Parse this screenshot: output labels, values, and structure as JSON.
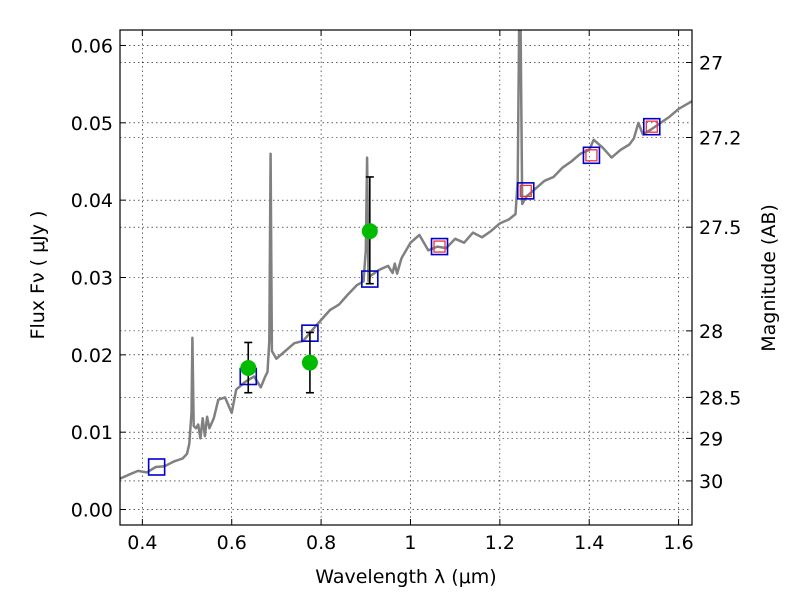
{
  "chart_data": {
    "type": "scatter",
    "xlabel": "Wavelength  λ (μm)",
    "ylabel": "Flux  Fν  ( μJy )",
    "y2label": "Magnitude (AB)",
    "xlim": [
      0.35,
      1.63
    ],
    "ylim": [
      -0.002,
      0.062
    ],
    "x_ticks": [
      "0.4",
      "0.6",
      "0.8",
      "1",
      "1.2",
      "1.4",
      "1.6"
    ],
    "y_ticks": [
      "0.00",
      "0.01",
      "0.02",
      "0.03",
      "0.04",
      "0.05",
      "0.06"
    ],
    "mag_ticks": [
      {
        "label": "27",
        "flux": 0.0578
      },
      {
        "label": "27.2",
        "flux": 0.0481
      },
      {
        "label": "27.5",
        "flux": 0.0365
      },
      {
        "label": "28",
        "flux": 0.0231
      },
      {
        "label": "28.5",
        "flux": 0.0145
      },
      {
        "label": "29",
        "flux": 0.0092
      },
      {
        "label": "30",
        "flux": 0.0037
      }
    ],
    "grid": true,
    "series": [
      {
        "kind": "line",
        "color": "#808080",
        "points": [
          [
            0.35,
            0.004
          ],
          [
            0.37,
            0.0045
          ],
          [
            0.39,
            0.005
          ],
          [
            0.41,
            0.0048
          ],
          [
            0.43,
            0.0055
          ],
          [
            0.45,
            0.0056
          ],
          [
            0.47,
            0.0062
          ],
          [
            0.49,
            0.0066
          ],
          [
            0.5,
            0.0072
          ],
          [
            0.505,
            0.0085
          ],
          [
            0.51,
            0.0125
          ],
          [
            0.512,
            0.0222
          ],
          [
            0.515,
            0.0108
          ],
          [
            0.52,
            0.0105
          ],
          [
            0.525,
            0.011
          ],
          [
            0.53,
            0.0092
          ],
          [
            0.535,
            0.0118
          ],
          [
            0.54,
            0.0095
          ],
          [
            0.545,
            0.012
          ],
          [
            0.55,
            0.0105
          ],
          [
            0.56,
            0.0118
          ],
          [
            0.57,
            0.0142
          ],
          [
            0.585,
            0.0145
          ],
          [
            0.6,
            0.0125
          ],
          [
            0.61,
            0.0155
          ],
          [
            0.63,
            0.0165
          ],
          [
            0.65,
            0.0172
          ],
          [
            0.665,
            0.0158
          ],
          [
            0.675,
            0.0172
          ],
          [
            0.68,
            0.0178
          ],
          [
            0.684,
            0.0218
          ],
          [
            0.687,
            0.046
          ],
          [
            0.69,
            0.0205
          ],
          [
            0.7,
            0.0195
          ],
          [
            0.72,
            0.0205
          ],
          [
            0.74,
            0.0215
          ],
          [
            0.76,
            0.0218
          ],
          [
            0.78,
            0.0232
          ],
          [
            0.8,
            0.0245
          ],
          [
            0.82,
            0.0258
          ],
          [
            0.84,
            0.0265
          ],
          [
            0.86,
            0.0278
          ],
          [
            0.88,
            0.029
          ],
          [
            0.895,
            0.0295
          ],
          [
            0.9,
            0.0335
          ],
          [
            0.903,
            0.0455
          ],
          [
            0.906,
            0.0295
          ],
          [
            0.91,
            0.0302
          ],
          [
            0.93,
            0.031
          ],
          [
            0.95,
            0.0315
          ],
          [
            0.96,
            0.0306
          ],
          [
            0.965,
            0.0318
          ],
          [
            0.97,
            0.0305
          ],
          [
            0.98,
            0.0325
          ],
          [
            1.0,
            0.0345
          ],
          [
            1.02,
            0.0355
          ],
          [
            1.04,
            0.0335
          ],
          [
            1.06,
            0.034
          ],
          [
            1.08,
            0.0338
          ],
          [
            1.1,
            0.035
          ],
          [
            1.12,
            0.0345
          ],
          [
            1.14,
            0.0358
          ],
          [
            1.16,
            0.0352
          ],
          [
            1.18,
            0.036
          ],
          [
            1.2,
            0.037
          ],
          [
            1.22,
            0.0375
          ],
          [
            1.235,
            0.0382
          ],
          [
            1.24,
            0.0425
          ],
          [
            1.243,
            0.062
          ],
          [
            1.246,
            0.065
          ],
          [
            1.25,
            0.0395
          ],
          [
            1.26,
            0.0405
          ],
          [
            1.28,
            0.0415
          ],
          [
            1.3,
            0.0425
          ],
          [
            1.32,
            0.043
          ],
          [
            1.34,
            0.0442
          ],
          [
            1.36,
            0.045
          ],
          [
            1.38,
            0.046
          ],
          [
            1.4,
            0.0465
          ],
          [
            1.41,
            0.0478
          ],
          [
            1.43,
            0.0468
          ],
          [
            1.45,
            0.0455
          ],
          [
            1.47,
            0.0465
          ],
          [
            1.49,
            0.0472
          ],
          [
            1.5,
            0.048
          ],
          [
            1.51,
            0.05
          ],
          [
            1.52,
            0.0485
          ],
          [
            1.54,
            0.0492
          ],
          [
            1.56,
            0.05
          ],
          [
            1.58,
            0.0508
          ],
          [
            1.6,
            0.0518
          ],
          [
            1.63,
            0.0528
          ]
        ]
      },
      {
        "kind": "box",
        "color": "#0000cc",
        "x": [
          0.432,
          0.637,
          0.775,
          0.909,
          1.065,
          1.258,
          1.405,
          1.54
        ],
        "y": [
          0.0055,
          0.0172,
          0.0228,
          0.0298,
          0.034,
          0.0412,
          0.0458,
          0.0495
        ]
      },
      {
        "kind": "box_inner",
        "color": "#e8323c",
        "x": [
          1.065,
          1.258,
          1.405,
          1.54
        ],
        "y": [
          0.034,
          0.0412,
          0.0458,
          0.0495
        ]
      },
      {
        "kind": "errorbar",
        "color": "#00bb00",
        "x": [
          0.637,
          0.775,
          0.909
        ],
        "y": [
          0.0183,
          0.019,
          0.036
        ],
        "yerr_low": [
          0.0151,
          0.0151,
          0.0292
        ],
        "yerr_high": [
          0.0216,
          0.0229,
          0.043
        ]
      }
    ]
  }
}
